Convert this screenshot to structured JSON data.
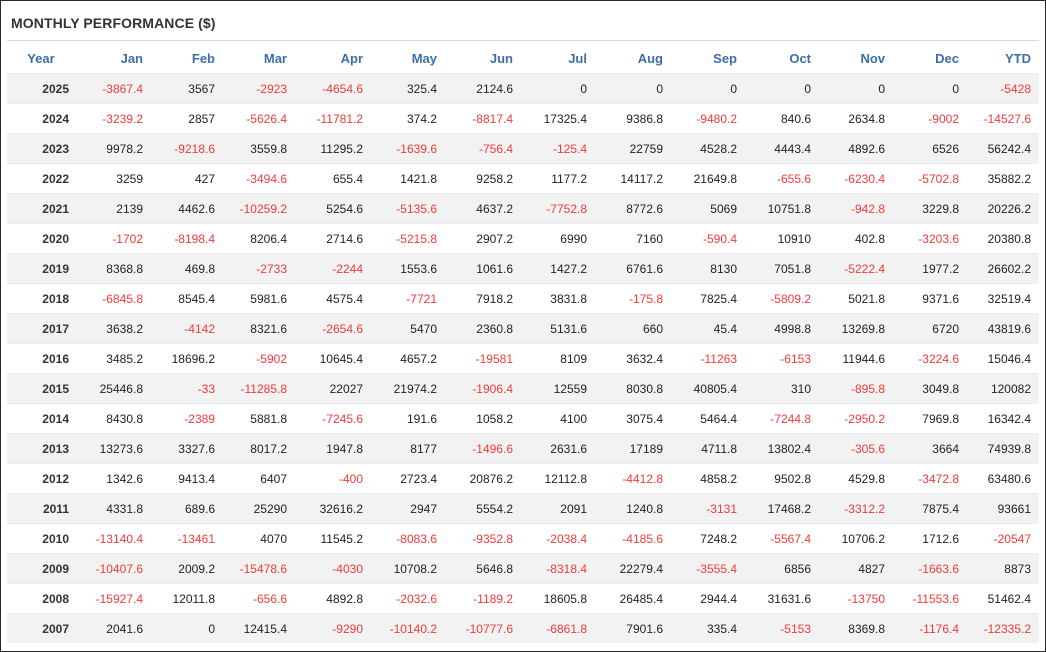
{
  "title": "MONTHLY PERFORMANCE ($)",
  "columns": [
    "Year",
    "Jan",
    "Feb",
    "Mar",
    "Apr",
    "May",
    "Jun",
    "Jul",
    "Aug",
    "Sep",
    "Oct",
    "Nov",
    "Dec",
    "YTD"
  ],
  "colors": {
    "header": "#3d6ea8",
    "negative": "#f03a3a",
    "positive": "#222222",
    "stripe": "#f2f2f2"
  },
  "rows": [
    [
      "2025",
      "-3867.4",
      "3567",
      "-2923",
      "-4654.6",
      "325.4",
      "2124.6",
      "0",
      "0",
      "0",
      "0",
      "0",
      "0",
      "-5428"
    ],
    [
      "2024",
      "-3239.2",
      "2857",
      "-5626.4",
      "-11781.2",
      "374.2",
      "-8817.4",
      "17325.4",
      "9386.8",
      "-9480.2",
      "840.6",
      "2634.8",
      "-9002",
      "-14527.6"
    ],
    [
      "2023",
      "9978.2",
      "-9218.6",
      "3559.8",
      "11295.2",
      "-1639.6",
      "-756.4",
      "-125.4",
      "22759",
      "4528.2",
      "4443.4",
      "4892.6",
      "6526",
      "56242.4"
    ],
    [
      "2022",
      "3259",
      "427",
      "-3494.6",
      "655.4",
      "1421.8",
      "9258.2",
      "1177.2",
      "14117.2",
      "21649.8",
      "-655.6",
      "-6230.4",
      "-5702.8",
      "35882.2"
    ],
    [
      "2021",
      "2139",
      "4462.6",
      "-10259.2",
      "5254.6",
      "-5135.6",
      "4637.2",
      "-7752.8",
      "8772.6",
      "5069",
      "10751.8",
      "-942.8",
      "3229.8",
      "20226.2"
    ],
    [
      "2020",
      "-1702",
      "-8198.4",
      "8206.4",
      "2714.6",
      "-5215.8",
      "2907.2",
      "6990",
      "7160",
      "-590.4",
      "10910",
      "402.8",
      "-3203.6",
      "20380.8"
    ],
    [
      "2019",
      "8368.8",
      "469.8",
      "-2733",
      "-2244",
      "1553.6",
      "1061.6",
      "1427.2",
      "6761.6",
      "8130",
      "7051.8",
      "-5222.4",
      "1977.2",
      "26602.2"
    ],
    [
      "2018",
      "-6845.8",
      "8545.4",
      "5981.6",
      "4575.4",
      "-7721",
      "7918.2",
      "3831.8",
      "-175.8",
      "7825.4",
      "-5809.2",
      "5021.8",
      "9371.6",
      "32519.4"
    ],
    [
      "2017",
      "3638.2",
      "-4142",
      "8321.6",
      "-2654.6",
      "5470",
      "2360.8",
      "5131.6",
      "660",
      "45.4",
      "4998.8",
      "13269.8",
      "6720",
      "43819.6"
    ],
    [
      "2016",
      "3485.2",
      "18696.2",
      "-5902",
      "10645.4",
      "4657.2",
      "-19581",
      "8109",
      "3632.4",
      "-11263",
      "-6153",
      "11944.6",
      "-3224.6",
      "15046.4"
    ],
    [
      "2015",
      "25446.8",
      "-33",
      "-11285.8",
      "22027",
      "21974.2",
      "-1906.4",
      "12559",
      "8030.8",
      "40805.4",
      "310",
      "-895.8",
      "3049.8",
      "120082"
    ],
    [
      "2014",
      "8430.8",
      "-2389",
      "5881.8",
      "-7245.6",
      "191.6",
      "1058.2",
      "4100",
      "3075.4",
      "5464.4",
      "-7244.8",
      "-2950.2",
      "7969.8",
      "16342.4"
    ],
    [
      "2013",
      "13273.6",
      "3327.6",
      "8017.2",
      "1947.8",
      "8177",
      "-1496.6",
      "2631.6",
      "17189",
      "4711.8",
      "13802.4",
      "-305.6",
      "3664",
      "74939.8"
    ],
    [
      "2012",
      "1342.6",
      "9413.4",
      "6407",
      "-400",
      "2723.4",
      "20876.2",
      "12112.8",
      "-4412.8",
      "4858.2",
      "9502.8",
      "4529.8",
      "-3472.8",
      "63480.6"
    ],
    [
      "2011",
      "4331.8",
      "689.6",
      "25290",
      "32616.2",
      "2947",
      "5554.2",
      "2091",
      "1240.8",
      "-3131",
      "17468.2",
      "-3312.2",
      "7875.4",
      "93661"
    ],
    [
      "2010",
      "-13140.4",
      "-13461",
      "4070",
      "11545.2",
      "-8083.6",
      "-9352.8",
      "-2038.4",
      "-4185.6",
      "7248.2",
      "-5567.4",
      "10706.2",
      "1712.6",
      "-20547"
    ],
    [
      "2009",
      "-10407.6",
      "2009.2",
      "-15478.6",
      "-4030",
      "10708.2",
      "5646.8",
      "-8318.4",
      "22279.4",
      "-3555.4",
      "6856",
      "4827",
      "-1663.6",
      "8873"
    ],
    [
      "2008",
      "-15927.4",
      "12011.8",
      "-656.6",
      "4892.8",
      "-2032.6",
      "-1189.2",
      "18605.8",
      "26485.4",
      "2944.4",
      "31631.6",
      "-13750",
      "-11553.6",
      "51462.4"
    ],
    [
      "2007",
      "2041.6",
      "0",
      "12415.4",
      "-9290",
      "-10140.2",
      "-10777.6",
      "-6861.8",
      "7901.6",
      "335.4",
      "-5153",
      "8369.8",
      "-1176.4",
      "-12335.2"
    ]
  ]
}
